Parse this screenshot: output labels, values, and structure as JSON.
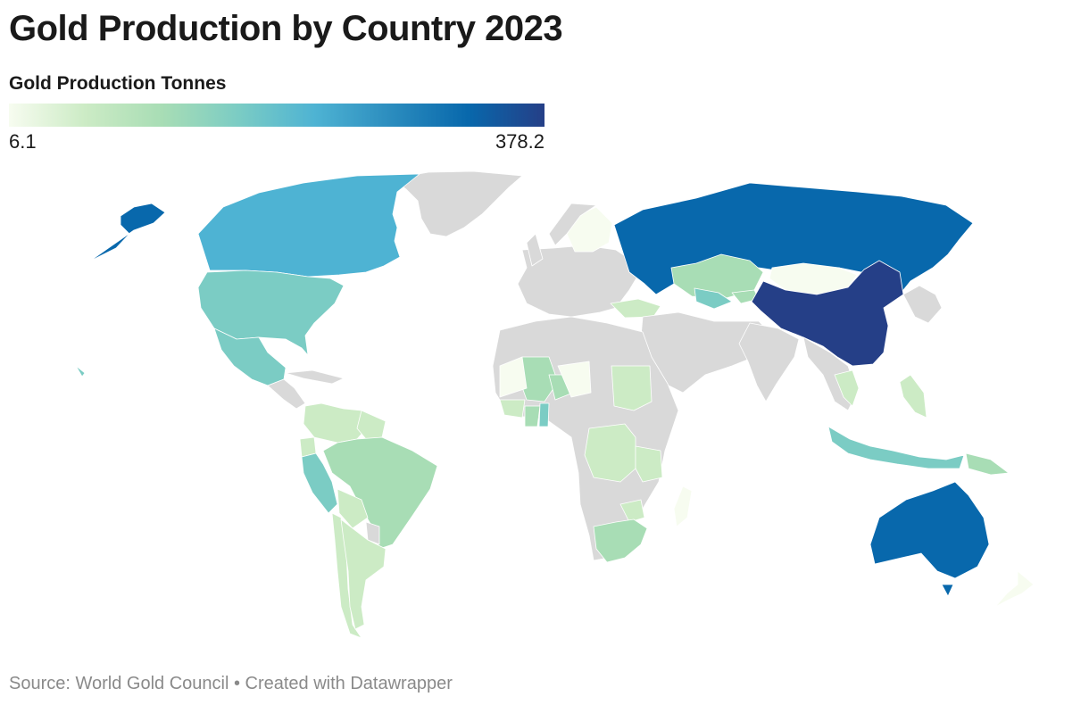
{
  "title": "Gold Production by Country 2023",
  "legend": {
    "title": "Gold Production Tonnes",
    "min_label": "6.1",
    "max_label": "378.2",
    "min": 6.1,
    "max": 378.2,
    "colors": [
      "#f7fcf0",
      "#ccebc5",
      "#a8ddb5",
      "#7bccc4",
      "#4eb3d3",
      "#2b8cbe",
      "#0868ac",
      "#253f87"
    ]
  },
  "no_data_color": "#d9d9d9",
  "source": "Source: World Gold Council • Created with Datawrapper"
}
